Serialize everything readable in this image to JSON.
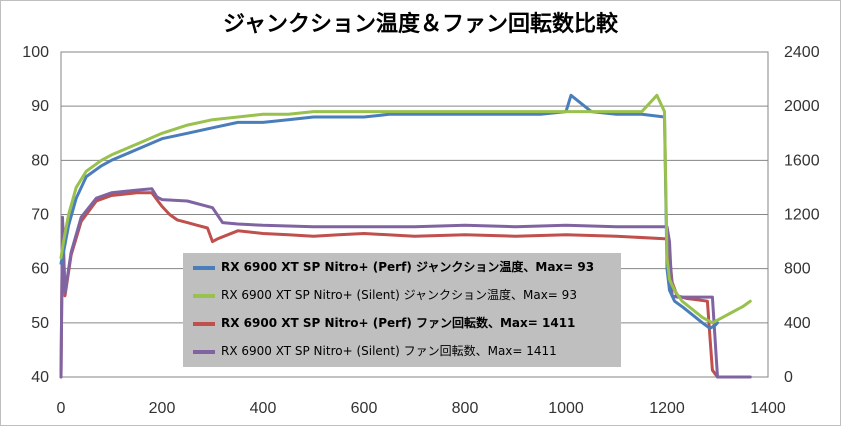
{
  "chart_data": {
    "type": "line",
    "title": "ジャンクション温度＆ファン回転数比較",
    "xlim": [
      0,
      1400
    ],
    "x_ticks": [
      "0",
      "200",
      "400",
      "600",
      "800",
      "1000",
      "1200",
      "1400"
    ],
    "ylim_left": [
      40,
      100
    ],
    "y_left_ticks": [
      "40",
      "50",
      "60",
      "70",
      "80",
      "90",
      "100"
    ],
    "ylim_right": [
      0,
      2400
    ],
    "y_right_ticks": [
      "0",
      "400",
      "800",
      "1200",
      "1600",
      "2000",
      "2400"
    ],
    "grid": "horizontal",
    "legend_position": "center-bottom",
    "series": [
      {
        "name": "RX 6900 XT SP Nitro+ (Perf) ジャンクション温度、Max= 93",
        "axis": "left",
        "color": "#4a7ebb",
        "bold_label": true,
        "x": [
          0,
          5,
          15,
          30,
          50,
          80,
          100,
          150,
          200,
          250,
          300,
          350,
          400,
          450,
          500,
          550,
          600,
          650,
          700,
          750,
          800,
          850,
          900,
          950,
          1000,
          1010,
          1050,
          1100,
          1150,
          1195,
          1200,
          1205,
          1215,
          1230,
          1250,
          1270,
          1285,
          1295,
          1300
        ],
        "y": [
          61,
          63,
          68,
          73,
          77,
          79,
          80,
          82,
          84,
          85,
          86,
          87,
          87,
          87.5,
          88,
          88,
          88,
          88.5,
          88.5,
          88.5,
          88.5,
          88.5,
          88.5,
          88.5,
          89,
          92,
          89,
          88.5,
          88.5,
          88,
          60,
          56,
          54,
          53,
          51.5,
          50,
          49,
          49.5,
          50
        ]
      },
      {
        "name": "RX 6900 XT SP Nitro+ (Silent) ジャンクション温度、Max= 93",
        "axis": "left",
        "color": "#98c14d",
        "bold_label": false,
        "x": [
          0,
          5,
          15,
          30,
          50,
          80,
          100,
          150,
          200,
          250,
          300,
          350,
          400,
          450,
          500,
          550,
          600,
          650,
          700,
          750,
          800,
          850,
          900,
          950,
          1000,
          1050,
          1100,
          1150,
          1180,
          1195,
          1200,
          1205,
          1215,
          1230,
          1250,
          1270,
          1290,
          1310,
          1330,
          1350,
          1365
        ],
        "y": [
          62,
          65,
          70,
          75,
          78,
          80,
          81,
          83,
          85,
          86.5,
          87.5,
          88,
          88.5,
          88.5,
          89,
          89,
          89,
          89,
          89,
          89,
          89,
          89,
          89,
          89,
          89,
          89,
          89,
          89,
          92,
          89,
          62,
          58,
          56,
          54,
          52.5,
          51,
          50,
          51,
          52,
          53,
          54
        ]
      },
      {
        "name": "RX 6900 XT SP Nitro+ (Perf) ファン回転数、Max= 1411",
        "axis": "right",
        "color": "#c0504d",
        "bold_label": true,
        "x": [
          0,
          3,
          8,
          20,
          40,
          70,
          100,
          150,
          180,
          190,
          200,
          215,
          230,
          250,
          270,
          290,
          300,
          310,
          330,
          350,
          400,
          450,
          500,
          550,
          600,
          700,
          800,
          900,
          1000,
          1100,
          1200,
          1205,
          1210,
          1220,
          1240,
          1260,
          1280,
          1285,
          1290,
          1300
        ],
        "y": [
          0,
          1150,
          600,
          900,
          1150,
          1300,
          1340,
          1360,
          1360,
          1310,
          1260,
          1200,
          1160,
          1140,
          1120,
          1100,
          1000,
          1020,
          1050,
          1080,
          1060,
          1050,
          1040,
          1050,
          1060,
          1040,
          1050,
          1040,
          1050,
          1040,
          1020,
          900,
          700,
          600,
          580,
          570,
          560,
          300,
          50,
          0
        ]
      },
      {
        "name": "RX 6900 XT SP Nitro+ (Silent) ファン回転数、Max= 1411",
        "axis": "right",
        "color": "#8064a2",
        "bold_label": false,
        "x": [
          0,
          3,
          8,
          20,
          40,
          70,
          100,
          150,
          180,
          190,
          200,
          250,
          300,
          320,
          350,
          400,
          500,
          600,
          700,
          800,
          900,
          1000,
          1100,
          1150,
          1200,
          1205,
          1210,
          1220,
          1250,
          1270,
          1290,
          1300,
          1320,
          1340,
          1365
        ],
        "y": [
          0,
          1180,
          620,
          920,
          1180,
          1320,
          1360,
          1380,
          1390,
          1330,
          1310,
          1300,
          1250,
          1140,
          1130,
          1120,
          1110,
          1110,
          1110,
          1120,
          1110,
          1120,
          1110,
          1110,
          1110,
          1000,
          600,
          590,
          590,
          590,
          590,
          0,
          0,
          0,
          0
        ]
      }
    ]
  }
}
